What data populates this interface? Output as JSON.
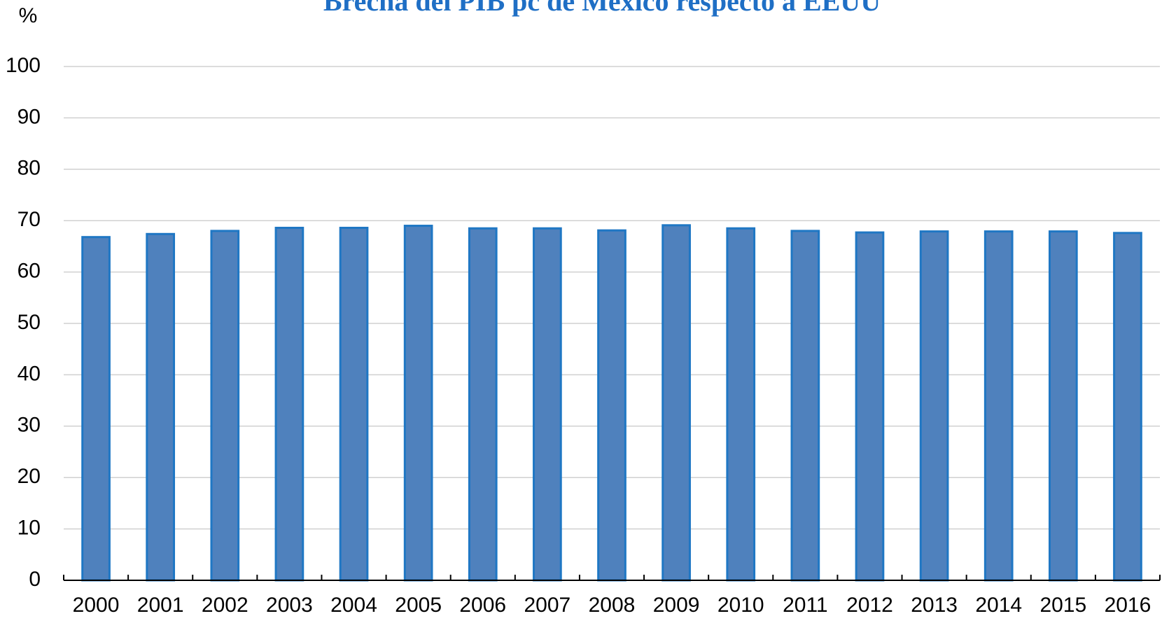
{
  "chart_data": {
    "type": "bar",
    "title": "Brecha del PIB pc de México respecto a EEUU",
    "y_label": "%",
    "categories": [
      "2000",
      "2001",
      "2002",
      "2003",
      "2004",
      "2005",
      "2006",
      "2007",
      "2008",
      "2009",
      "2010",
      "2011",
      "2012",
      "2013",
      "2014",
      "2015",
      "2016"
    ],
    "values": [
      66.8,
      67.4,
      68.0,
      68.6,
      68.6,
      69.0,
      68.5,
      68.5,
      68.1,
      69.1,
      68.5,
      68.0,
      67.7,
      67.9,
      67.9,
      67.9,
      67.6
    ],
    "color": "#4f81bd",
    "edge_color": "#1f77c4",
    "ylim": [
      0,
      100
    ],
    "yticks": [
      0,
      10,
      20,
      30,
      40,
      50,
      60,
      70,
      80,
      90,
      100
    ],
    "grid": true
  }
}
